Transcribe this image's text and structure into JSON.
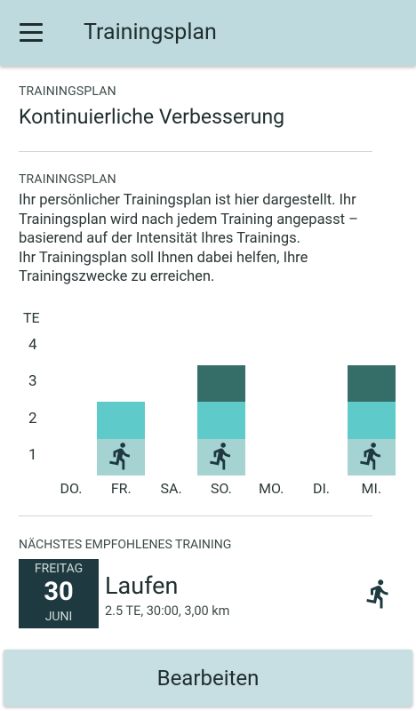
{
  "appbar": {
    "title": "Trainingsplan"
  },
  "plan": {
    "label": "TRAININGSPLAN",
    "title": "Kontinuierliche Verbesserung"
  },
  "description": {
    "label": "TRAININGSPLAN",
    "text1": "Ihr persönlicher Trainingsplan ist hier dargestellt. Ihr Trainingsplan wird nach jedem Training angepasst – basierend auf der Intensität Ihres Trainings.",
    "text2": "Ihr Trainingsplan soll Ihnen dabei helfen, Ihre Trainingszwecke zu erreichen."
  },
  "chart_data": {
    "type": "bar",
    "ylabel": "TE",
    "yticks": [
      "1",
      "2",
      "3",
      "4"
    ],
    "ylim": [
      0.5,
      4.5
    ],
    "categories": [
      "DO.",
      "FR.",
      "SA.",
      "SO.",
      "MO.",
      "DI.",
      "MI."
    ],
    "values": [
      0,
      2.5,
      0,
      3.5,
      0,
      0,
      3.5
    ],
    "colors": [
      "#a4d3d1",
      "#5ecac9",
      "#356d69"
    ],
    "activity": [
      "",
      "running",
      "",
      "running",
      "",
      "",
      "running"
    ]
  },
  "next_training": {
    "label": "NÄCHSTES EMPFOHLENES TRAINING",
    "weekday": "FREITAG",
    "day": "30",
    "month": "JUNI",
    "activity": "Laufen",
    "details": "2.5 TE, 30:00, 3,00 km",
    "icon": "running-icon"
  },
  "edit_button": {
    "label": "Bearbeiten"
  }
}
